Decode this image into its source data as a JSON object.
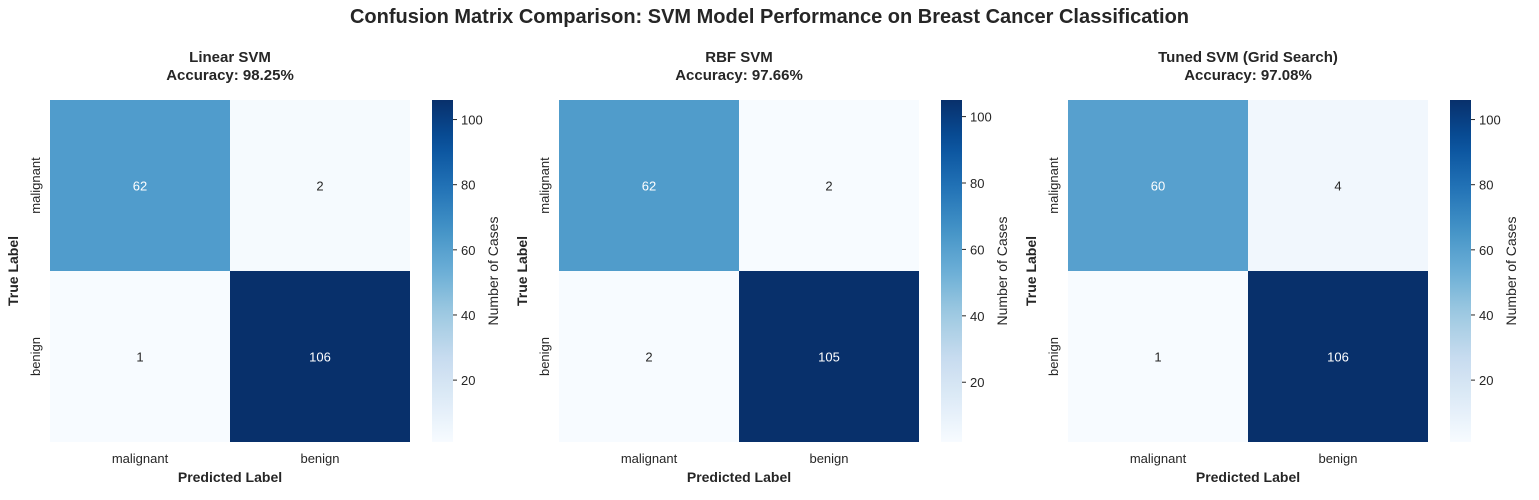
{
  "suptitle": "Confusion Matrix Comparison: SVM Model Performance on Breast Cancer Classification",
  "chart_data": [
    {
      "type": "heatmap",
      "title": "Linear SVM",
      "subtitle": "Accuracy: 98.25%",
      "xlabel": "Predicted Label",
      "ylabel": "True Label",
      "x_categories": [
        "malignant",
        "benign"
      ],
      "y_categories": [
        "malignant",
        "benign"
      ],
      "values": [
        [
          62,
          2
        ],
        [
          1,
          106
        ]
      ],
      "colorbar": {
        "label": "Number of Cases",
        "range": [
          1,
          106
        ],
        "ticks": [
          20,
          40,
          60,
          80,
          100
        ],
        "colormap": "Blues"
      }
    },
    {
      "type": "heatmap",
      "title": "RBF SVM",
      "subtitle": "Accuracy: 97.66%",
      "xlabel": "Predicted Label",
      "ylabel": "True Label",
      "x_categories": [
        "malignant",
        "benign"
      ],
      "y_categories": [
        "malignant",
        "benign"
      ],
      "values": [
        [
          62,
          2
        ],
        [
          2,
          105
        ]
      ],
      "colorbar": {
        "label": "Number of Cases",
        "range": [
          2,
          105
        ],
        "ticks": [
          20,
          40,
          60,
          80,
          100
        ],
        "colormap": "Blues"
      }
    },
    {
      "type": "heatmap",
      "title": "Tuned SVM (Grid Search)",
      "subtitle": "Accuracy: 97.08%",
      "xlabel": "Predicted Label",
      "ylabel": "True Label",
      "x_categories": [
        "malignant",
        "benign"
      ],
      "y_categories": [
        "malignant",
        "benign"
      ],
      "values": [
        [
          60,
          4
        ],
        [
          1,
          106
        ]
      ],
      "colorbar": {
        "label": "Number of Cases",
        "range": [
          1,
          106
        ],
        "ticks": [
          20,
          40,
          60,
          80,
          100
        ],
        "colormap": "Blues"
      }
    }
  ]
}
